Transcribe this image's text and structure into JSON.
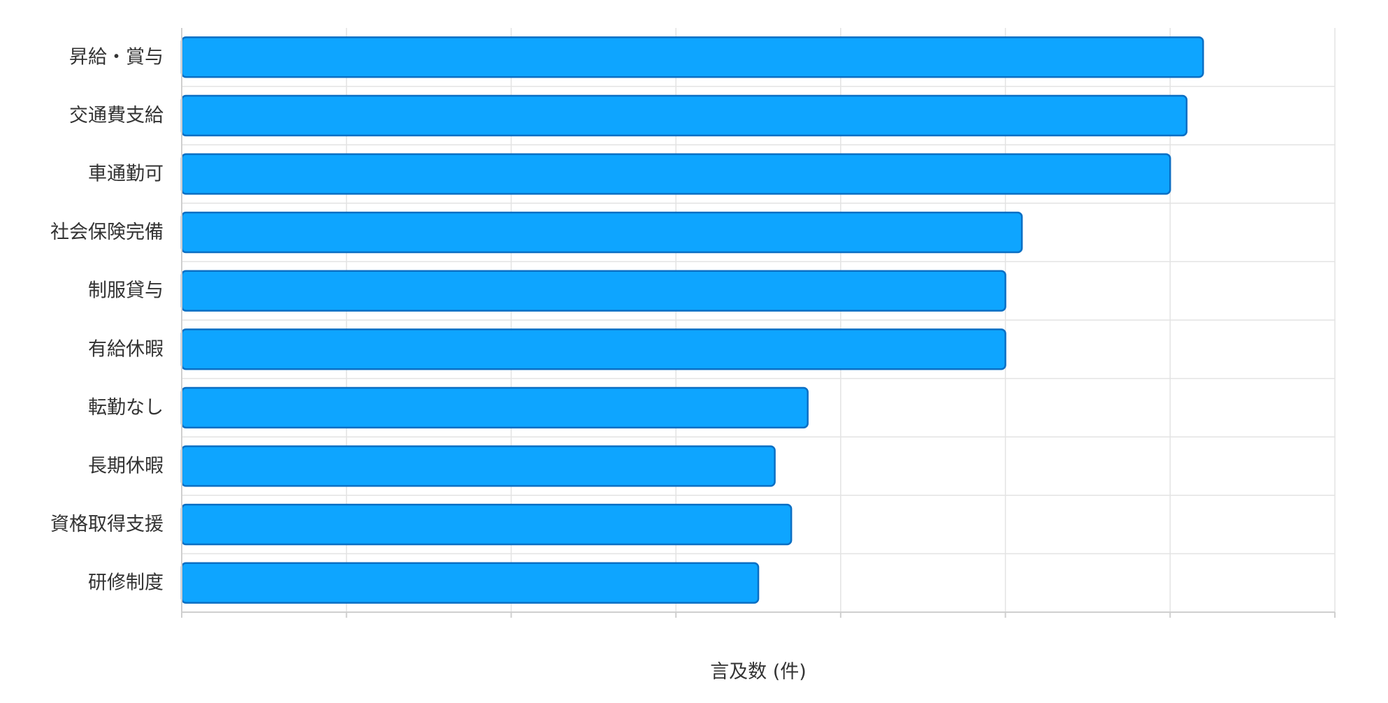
{
  "chart_data": {
    "type": "bar",
    "orientation": "horizontal",
    "categories": [
      "昇給・賞与",
      "交通費支給",
      "車通勤可",
      "社会保険完備",
      "制服貸与",
      "有給休暇",
      "転勤なし",
      "長期休暇",
      "資格取得支援",
      "研修制度"
    ],
    "values": [
      62,
      61,
      60,
      51,
      50,
      50,
      38,
      36,
      37,
      35
    ],
    "xlabel": "言及数 (件)",
    "ylabel": "",
    "xlim": [
      0,
      70
    ],
    "x_tick_step": 10,
    "x_tick_labels_shown": false,
    "grid": true,
    "legend": "none",
    "bar_color": "#0ea5ff",
    "bar_border_color": "#0a6fc4"
  }
}
